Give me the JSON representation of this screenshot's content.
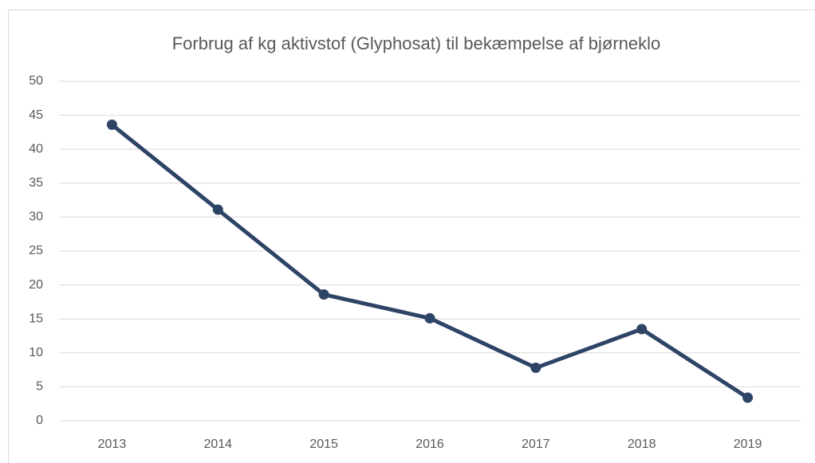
{
  "chart_data": {
    "type": "line",
    "title": "Forbrug af kg aktivstof (Glyphosat) til bekæmpelse af bjørneklo",
    "categories": [
      "2013",
      "2014",
      "2015",
      "2016",
      "2017",
      "2018",
      "2019"
    ],
    "series": [
      {
        "name": "Glyphosat",
        "color": "#2e4466",
        "values": [
          43.6,
          31.1,
          18.6,
          15.1,
          7.8,
          13.5,
          3.4
        ]
      }
    ],
    "ylim": [
      0,
      50
    ],
    "yticks": [
      0,
      5,
      10,
      15,
      20,
      25,
      30,
      35,
      40,
      45,
      50
    ],
    "grid": true
  }
}
